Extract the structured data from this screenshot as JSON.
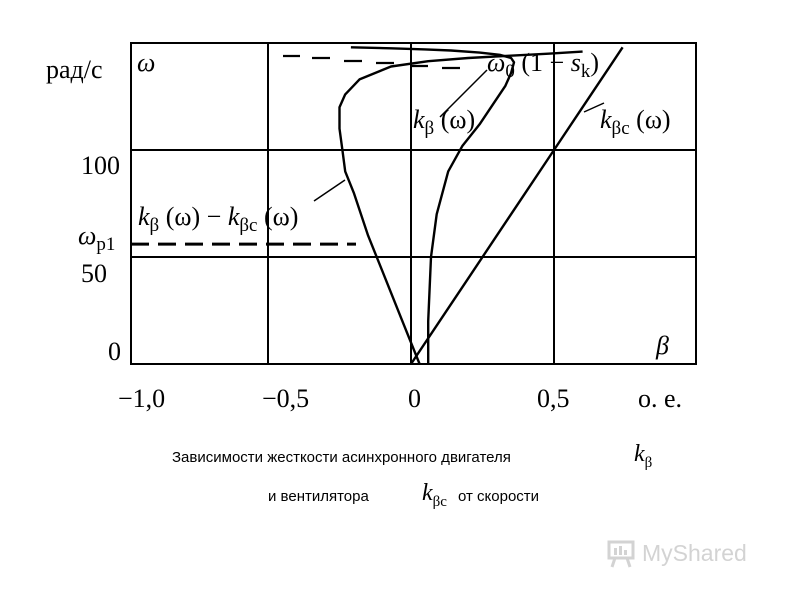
{
  "chart_data": {
    "type": "line",
    "xlim": [
      -1.0,
      0.5
    ],
    "ylim": [
      0,
      150
    ],
    "grid": true,
    "x_ticks": [
      {
        "value": -1.0,
        "label": "−1,0"
      },
      {
        "value": -0.5,
        "label": "−0,5"
      },
      {
        "value": 0,
        "label": "0"
      },
      {
        "value": 0.5,
        "label": "0,5"
      }
    ],
    "x_unit": "о. е.",
    "y_ticks": [
      {
        "value": 0,
        "label": "0"
      },
      {
        "value": 50,
        "label": "50"
      },
      {
        "value": 100,
        "label": "100"
      }
    ],
    "y_unit": "рад/с",
    "y_symbol": "ω",
    "x_symbol": "β",
    "omega_p1": {
      "value": 56,
      "label_main": "ω",
      "label_sub": "р1"
    },
    "omega_sync": {
      "value": 145
    },
    "series": [
      {
        "key": "k_beta",
        "x": [
          0.06,
          0.06,
          0.07,
          0.09,
          0.13,
          0.18,
          0.24,
          0.29,
          0.33,
          0.35,
          0.36,
          0.35,
          0.31,
          0.24,
          0.14,
          0.05,
          -0.07,
          -0.21
        ],
        "y": [
          0,
          20,
          50,
          70,
          90,
          102,
          112,
          122,
          130,
          136,
          141,
          143,
          144.5,
          145.5,
          146.5,
          147,
          147.5,
          148
        ]
      },
      {
        "key": "k_beta_c",
        "x": [
          0.0,
          0.1,
          0.2,
          0.3,
          0.4,
          0.5,
          0.6,
          0.7,
          0.74
        ],
        "y": [
          0,
          20,
          40,
          60,
          80,
          100,
          120,
          140,
          148
        ]
      },
      {
        "key": "k_diff",
        "x": [
          0.03,
          -0.03,
          -0.09,
          -0.15,
          -0.2,
          -0.23,
          -0.24,
          -0.25,
          -0.25,
          -0.23,
          -0.18,
          -0.07,
          0.06,
          0.2,
          0.34,
          0.48,
          0.6
        ],
        "y": [
          0,
          20,
          40,
          60,
          80,
          90,
          100,
          110,
          120,
          126,
          133,
          139,
          141.5,
          143,
          144,
          145,
          146
        ]
      }
    ],
    "annotations": [
      {
        "id": "ann-kb",
        "main": "k",
        "sub": "β",
        "tail": " (ω)"
      },
      {
        "id": "ann-kbc",
        "main": "k",
        "sub": "βс",
        "tail": " (ω)"
      },
      {
        "id": "ann-diff",
        "main": "k",
        "sub": "β",
        "mid": " (ω) − ",
        "main2": "k",
        "sub2": "βс",
        "tail": " (ω)"
      },
      {
        "id": "ann-omega0",
        "main": "ω",
        "sub": "0",
        "tail": " (1 − ",
        "main2": "s",
        "sub2": "k",
        "tail2": ")"
      }
    ]
  },
  "caption": {
    "line1": "Зависимости жесткости асинхронного двигателя",
    "line2_prefix": "и вентилятора",
    "line2_suffix": "от скорости",
    "sym1_main": "k",
    "sym1_sub": "β",
    "sym2_main": "k",
    "sym2_sub": "βс"
  },
  "watermark": {
    "text": "MyShared",
    "color": "#d3d3d3"
  }
}
